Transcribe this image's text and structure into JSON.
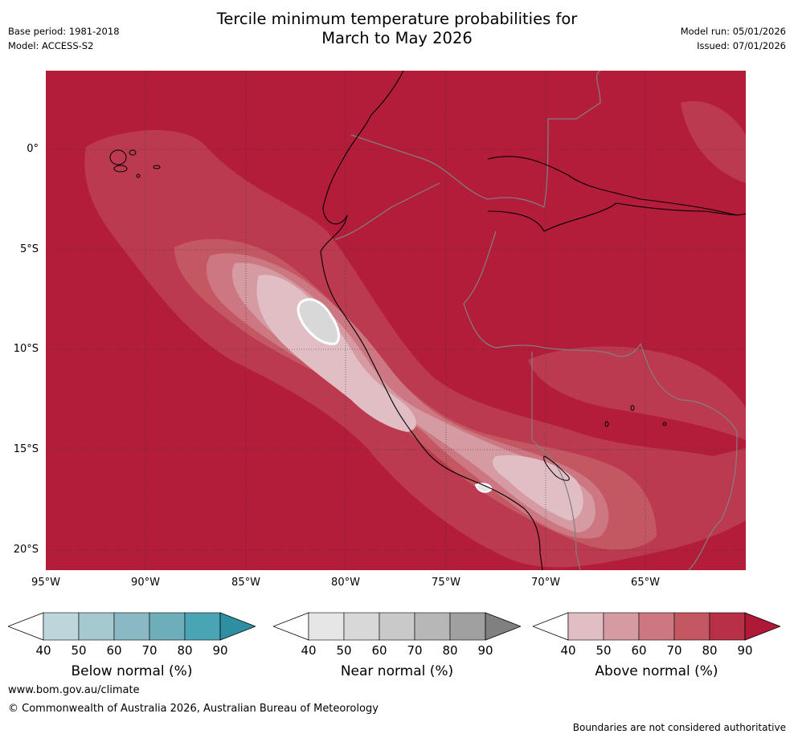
{
  "header": {
    "title_line1": "Tercile minimum temperature probabilities for",
    "title_line2": "March to May 2026",
    "base_period": "Base period: 1981-2018",
    "model": "Model: ACCESS-S2",
    "model_run": "Model run: 05/01/2026",
    "issued": "Issued: 07/01/2026"
  },
  "map": {
    "lat_labels": [
      "0°",
      "5°S",
      "10°S",
      "15°S",
      "20°S"
    ],
    "lon_labels": [
      "95°W",
      "90°W",
      "85°W",
      "80°W",
      "75°W",
      "70°W",
      "65°W"
    ],
    "lat_extent": [
      -21,
      4
    ],
    "lon_extent": [
      -95,
      -60
    ],
    "dominant_category": "Above normal",
    "colors": {
      "above_90": "#b31d3a",
      "above_80": "#bb3a4f",
      "above_70": "#c45862",
      "above_60": "#cc7781",
      "above_50": "#d59aa2",
      "above_40": "#e0bec3",
      "near_50": "#d8d8d8",
      "coast": "#000000",
      "border": "#808080"
    }
  },
  "colorbars": [
    {
      "title": "Below normal (%)",
      "ticks": [
        "40",
        "50",
        "60",
        "70",
        "80",
        "90"
      ],
      "colors": [
        "#bdd6dc",
        "#a6c8cf",
        "#8ab8c3",
        "#6daeba",
        "#49a4b4",
        "#2e8fa2"
      ]
    },
    {
      "title": "Near normal (%)",
      "ticks": [
        "40",
        "50",
        "60",
        "70",
        "80",
        "90"
      ],
      "colors": [
        "#e6e6e6",
        "#d8d8d8",
        "#c9c9c9",
        "#b7b7b7",
        "#a0a0a0",
        "#808080"
      ]
    },
    {
      "title": "Above normal (%)",
      "ticks": [
        "40",
        "50",
        "60",
        "70",
        "80",
        "90"
      ],
      "colors": [
        "#e0bec3",
        "#d59aa2",
        "#cc7781",
        "#c45862",
        "#b73045",
        "#ae1938"
      ]
    }
  ],
  "footer": {
    "website": "www.bom.gov.au/climate",
    "copyright": "© Commonwealth of Australia 2026, Australian Bureau of Meteorology",
    "disclaimer": "Boundaries are not considered authoritative"
  }
}
